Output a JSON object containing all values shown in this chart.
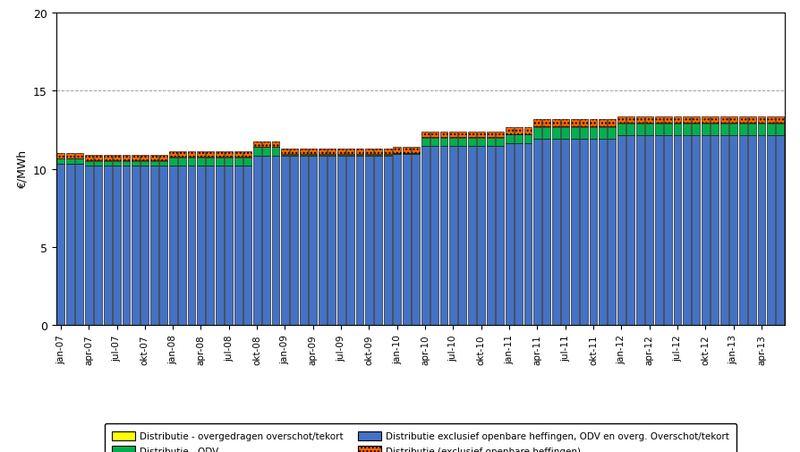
{
  "title": "",
  "ylabel": "€/MWh",
  "ylim": [
    0,
    20
  ],
  "yticks": [
    0,
    5,
    10,
    15,
    20
  ],
  "background_color": "#ffffff",
  "grid_color": "#a0a0a0",
  "bar_color_blue": "#4472c4",
  "bar_color_green": "#00b050",
  "bar_color_yellow": "#ffff00",
  "bar_color_orange": "#ff6600",
  "xtick_labels": [
    "jan-07",
    "",
    "",
    "apr-07",
    "",
    "",
    "jul-07",
    "",
    "",
    "okt-07",
    "",
    "",
    "jan-08",
    "",
    "",
    "apr-08",
    "",
    "",
    "jul-08",
    "",
    "",
    "okt-08",
    "",
    "",
    "jan-09",
    "",
    "",
    "apr-09",
    "",
    "",
    "jul-09",
    "",
    "",
    "okt-09",
    "",
    "",
    "jan-10",
    "",
    "",
    "apr-10",
    "",
    "",
    "jul-10",
    "",
    "",
    "okt-10",
    "",
    "",
    "jan-11",
    "",
    "",
    "apr-11",
    "",
    "",
    "jul-11",
    "",
    "",
    "okt-11",
    "",
    "",
    "jan-12",
    "",
    "",
    "apr-12",
    "",
    "",
    "jul-12",
    "",
    "",
    "okt-12",
    "",
    "",
    "jan-13",
    "",
    "",
    "apr-13",
    "",
    ""
  ],
  "blue_values": [
    10.35,
    10.35,
    10.35,
    10.2,
    10.2,
    10.2,
    10.2,
    10.2,
    10.2,
    10.2,
    10.2,
    10.2,
    10.2,
    10.2,
    10.2,
    10.2,
    10.2,
    10.2,
    10.2,
    10.2,
    10.2,
    10.85,
    10.85,
    10.85,
    10.85,
    10.85,
    10.85,
    10.85,
    10.85,
    10.85,
    10.85,
    10.85,
    10.85,
    10.85,
    10.85,
    10.85,
    10.95,
    10.95,
    10.95,
    11.45,
    11.45,
    11.45,
    11.45,
    11.45,
    11.45,
    11.45,
    11.45,
    11.45,
    11.65,
    11.65,
    11.65,
    11.95,
    11.95,
    11.95,
    11.95,
    11.95,
    11.95,
    11.95,
    11.95,
    11.95,
    12.15,
    12.15,
    12.15,
    12.15,
    12.15,
    12.15,
    12.15,
    12.15,
    12.15,
    12.15,
    12.15,
    12.15,
    12.15,
    12.15,
    12.15,
    12.15,
    12.15,
    12.15
  ],
  "green_values": [
    0.3,
    0.3,
    0.3,
    0.3,
    0.3,
    0.3,
    0.3,
    0.3,
    0.3,
    0.3,
    0.3,
    0.3,
    0.55,
    0.55,
    0.55,
    0.55,
    0.55,
    0.55,
    0.55,
    0.55,
    0.55,
    0.55,
    0.55,
    0.55,
    0.05,
    0.05,
    0.05,
    0.05,
    0.05,
    0.05,
    0.05,
    0.05,
    0.05,
    0.05,
    0.05,
    0.05,
    0.05,
    0.05,
    0.05,
    0.55,
    0.55,
    0.55,
    0.55,
    0.55,
    0.55,
    0.55,
    0.55,
    0.55,
    0.55,
    0.55,
    0.55,
    0.75,
    0.75,
    0.75,
    0.75,
    0.75,
    0.75,
    0.75,
    0.75,
    0.75,
    0.75,
    0.75,
    0.75,
    0.75,
    0.75,
    0.75,
    0.75,
    0.75,
    0.75,
    0.75,
    0.75,
    0.75,
    0.75,
    0.75,
    0.75,
    0.75,
    0.75,
    0.75
  ],
  "yellow_values": [
    0.04,
    0.04,
    0.04,
    0.04,
    0.04,
    0.04,
    0.04,
    0.04,
    0.04,
    0.04,
    0.04,
    0.04,
    0.04,
    0.04,
    0.04,
    0.04,
    0.04,
    0.04,
    0.04,
    0.04,
    0.04,
    0.04,
    0.04,
    0.04,
    0.04,
    0.04,
    0.04,
    0.04,
    0.04,
    0.04,
    0.04,
    0.04,
    0.04,
    0.04,
    0.04,
    0.04,
    0.04,
    0.04,
    0.04,
    0.04,
    0.04,
    0.04,
    0.04,
    0.04,
    0.04,
    0.04,
    0.04,
    0.04,
    0.04,
    0.04,
    0.04,
    0.04,
    0.04,
    0.04,
    0.04,
    0.04,
    0.04,
    0.04,
    0.04,
    0.04,
    0.04,
    0.04,
    0.04,
    0.04,
    0.04,
    0.04,
    0.04,
    0.04,
    0.04,
    0.04,
    0.04,
    0.04,
    0.04,
    0.04,
    0.04,
    0.04,
    0.04,
    0.04
  ],
  "orange_values": [
    0.35,
    0.35,
    0.35,
    0.35,
    0.35,
    0.35,
    0.35,
    0.35,
    0.35,
    0.35,
    0.35,
    0.35,
    0.35,
    0.35,
    0.35,
    0.35,
    0.35,
    0.35,
    0.35,
    0.35,
    0.35,
    0.35,
    0.35,
    0.35,
    0.35,
    0.35,
    0.35,
    0.35,
    0.35,
    0.35,
    0.35,
    0.35,
    0.35,
    0.35,
    0.35,
    0.35,
    0.35,
    0.35,
    0.35,
    0.35,
    0.35,
    0.35,
    0.35,
    0.35,
    0.35,
    0.35,
    0.35,
    0.35,
    0.45,
    0.45,
    0.45,
    0.45,
    0.45,
    0.45,
    0.45,
    0.45,
    0.45,
    0.45,
    0.45,
    0.45,
    0.45,
    0.45,
    0.45,
    0.45,
    0.45,
    0.45,
    0.45,
    0.45,
    0.45,
    0.45,
    0.45,
    0.45,
    0.45,
    0.45,
    0.45,
    0.45,
    0.45,
    0.45
  ],
  "legend_labels": [
    "Distributie - overgedragen overschot/tekort",
    "Distributie - ODV",
    "Distributie exclusief openbare heffingen, ODV en overg. Overschot/tekort",
    "Distributie (exclusief openbare heffingen)"
  ],
  "legend_colors": [
    "#ffff00",
    "#00b050",
    "#4472c4",
    "#ff6600"
  ]
}
